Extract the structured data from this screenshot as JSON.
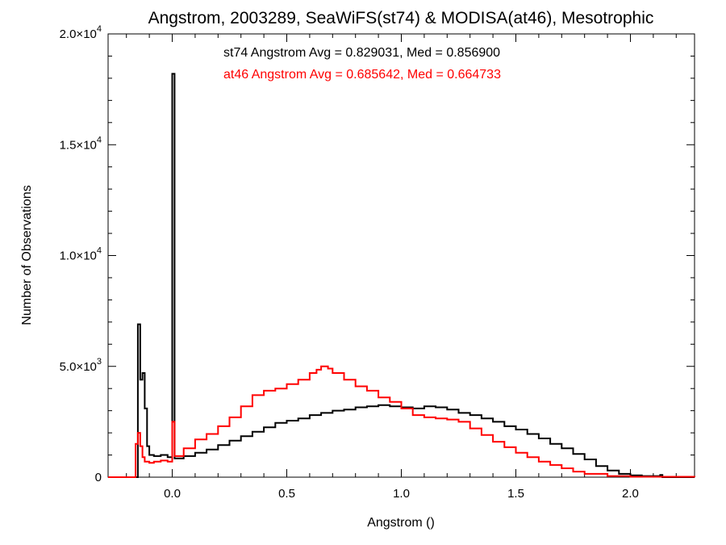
{
  "chart_data": {
    "type": "line",
    "title": "Angstrom, 2003289, SeaWiFS(st74) & MODISA(at46), Mesotrophic",
    "xlabel": "Angstrom ()",
    "ylabel": "Number of Observations",
    "xlim": [
      -0.28,
      2.28
    ],
    "ylim": [
      0,
      20000
    ],
    "x_ticks": [
      {
        "value": 0.0,
        "label": "0.0"
      },
      {
        "value": 0.5,
        "label": "0.5"
      },
      {
        "value": 1.0,
        "label": "1.0"
      },
      {
        "value": 1.5,
        "label": "1.5"
      },
      {
        "value": 2.0,
        "label": "2.0"
      }
    ],
    "y_ticks": [
      {
        "value": 0,
        "mantissa": "0",
        "exponent": ""
      },
      {
        "value": 5000,
        "mantissa": "5.0×10",
        "exponent": "3"
      },
      {
        "value": 10000,
        "mantissa": "1.0×10",
        "exponent": "4"
      },
      {
        "value": 15000,
        "mantissa": "1.5×10",
        "exponent": "4"
      },
      {
        "value": 20000,
        "mantissa": "2.0×10",
        "exponent": "4"
      }
    ],
    "annotations": [
      {
        "text": "st74 Angstrom Avg = 0.829031, Med = 0.856900",
        "color": "#000000"
      },
      {
        "text": "at46 Angstrom Avg = 0.685642, Med = 0.664733",
        "color": "#ff0000"
      }
    ],
    "series": [
      {
        "color": "#000000",
        "x": [
          -0.28,
          -0.16,
          -0.15,
          -0.14,
          -0.13,
          -0.12,
          -0.11,
          -0.1,
          -0.08,
          -0.05,
          -0.02,
          0.0,
          0.01,
          0.05,
          0.1,
          0.15,
          0.2,
          0.25,
          0.3,
          0.35,
          0.4,
          0.45,
          0.5,
          0.55,
          0.6,
          0.65,
          0.7,
          0.75,
          0.8,
          0.85,
          0.9,
          0.95,
          1.0,
          1.05,
          1.1,
          1.15,
          1.2,
          1.25,
          1.3,
          1.35,
          1.4,
          1.45,
          1.5,
          1.55,
          1.6,
          1.65,
          1.7,
          1.75,
          1.8,
          1.85,
          1.9,
          1.95,
          2.0,
          2.05,
          2.1,
          2.13,
          2.14,
          2.2,
          2.28
        ],
        "y": [
          0,
          0,
          6900,
          4400,
          4700,
          3100,
          1400,
          1000,
          950,
          1000,
          900,
          18200,
          850,
          950,
          1100,
          1250,
          1450,
          1650,
          1850,
          2050,
          2250,
          2450,
          2550,
          2650,
          2800,
          2900,
          3000,
          3050,
          3150,
          3200,
          3250,
          3200,
          3150,
          3100,
          3200,
          3150,
          3050,
          2900,
          2800,
          2650,
          2500,
          2300,
          2150,
          1950,
          1750,
          1500,
          1300,
          1050,
          800,
          500,
          300,
          150,
          80,
          50,
          50,
          100,
          0,
          0,
          0
        ]
      },
      {
        "color": "#ff0000",
        "x": [
          -0.28,
          -0.17,
          -0.16,
          -0.15,
          -0.14,
          -0.13,
          -0.12,
          -0.1,
          -0.08,
          -0.05,
          -0.02,
          -0.01,
          0.0,
          0.01,
          0.05,
          0.1,
          0.15,
          0.2,
          0.25,
          0.3,
          0.35,
          0.4,
          0.45,
          0.5,
          0.55,
          0.6,
          0.63,
          0.65,
          0.68,
          0.7,
          0.75,
          0.8,
          0.85,
          0.9,
          0.95,
          1.0,
          1.05,
          1.1,
          1.15,
          1.2,
          1.25,
          1.3,
          1.35,
          1.4,
          1.45,
          1.5,
          1.55,
          1.6,
          1.65,
          1.7,
          1.75,
          1.8,
          1.9,
          2.0,
          2.28
        ],
        "y": [
          0,
          0,
          1500,
          2000,
          1400,
          900,
          700,
          650,
          700,
          750,
          700,
          700,
          2500,
          950,
          1300,
          1700,
          1950,
          2300,
          2700,
          3200,
          3700,
          3900,
          4000,
          4200,
          4400,
          4700,
          4850,
          5000,
          4900,
          4700,
          4400,
          4100,
          3900,
          3600,
          3400,
          3100,
          2800,
          2700,
          2650,
          2600,
          2500,
          2200,
          1900,
          1600,
          1350,
          1100,
          900,
          700,
          550,
          400,
          250,
          150,
          50,
          20,
          0
        ]
      }
    ]
  }
}
